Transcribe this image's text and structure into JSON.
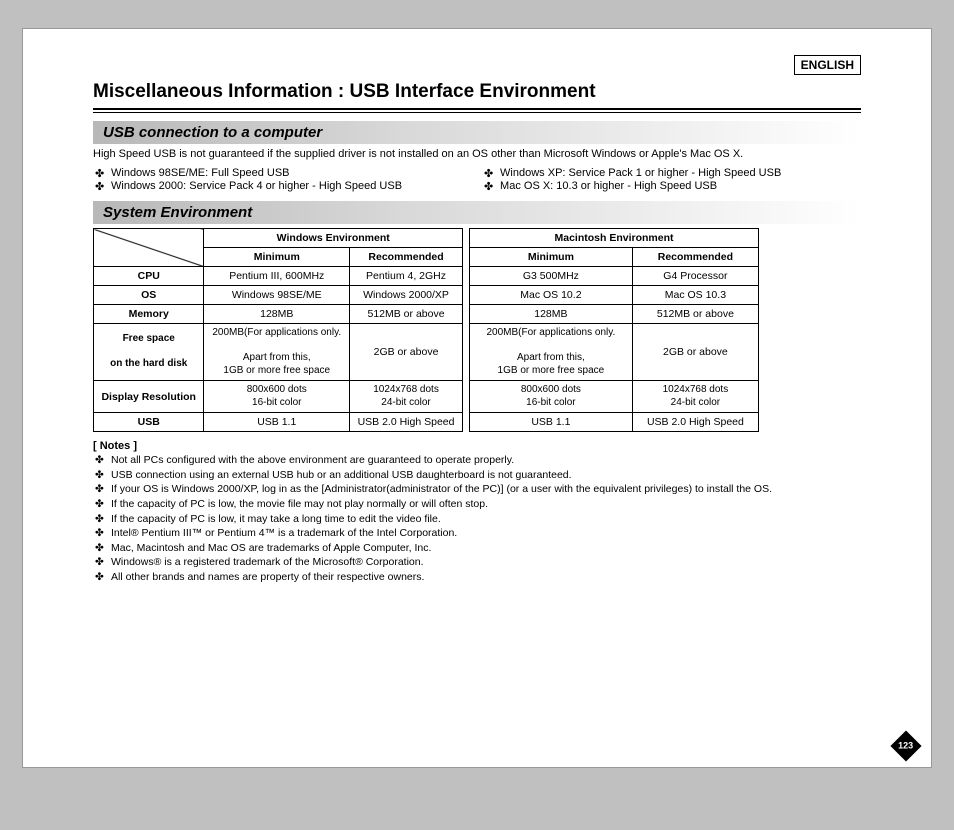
{
  "language_badge": "ENGLISH",
  "doc_title": "Miscellaneous Information : USB Interface Environment",
  "section1_title": "USB connection to a computer",
  "intro": "High Speed USB is not guaranteed if the supplied driver is not installed on an OS other than Microsoft Windows or Apple's Mac OS X.",
  "os_left": [
    "Windows 98SE/ME: Full Speed USB",
    "Windows 2000: Service Pack 4 or higher - High Speed USB"
  ],
  "os_right": [
    "Windows XP: Service Pack 1 or higher - High Speed USB",
    "Mac OS X: 10.3 or higher - High Speed USB"
  ],
  "section2_title": "System Environment",
  "win_env_label": "Windows Environment",
  "mac_env_label": "Macintosh Environment",
  "col_min": "Minimum",
  "col_rec": "Recommended",
  "rows": {
    "cpu": "CPU",
    "os": "OS",
    "memory": "Memory",
    "freespace1": "Free space",
    "freespace2": "on the hard disk",
    "display": "Display Resolution",
    "usb": "USB"
  },
  "win": {
    "cpu_min": "Pentium III, 600MHz",
    "cpu_rec": "Pentium 4, 2GHz",
    "os_min": "Windows 98SE/ME",
    "os_rec": "Windows 2000/XP",
    "mem_min": "128MB",
    "mem_rec": "512MB or above",
    "space_min_l1": "200MB(For applications only.",
    "space_min_l2": "Apart from this,",
    "space_min_l3": "1GB or more free space",
    "space_rec": "2GB or above",
    "disp_min_l1": "800x600 dots",
    "disp_min_l2": "16-bit color",
    "disp_rec_l1": "1024x768 dots",
    "disp_rec_l2": "24-bit color",
    "usb_min": "USB 1.1",
    "usb_rec": "USB 2.0 High Speed"
  },
  "mac": {
    "cpu_min": "G3 500MHz",
    "cpu_rec": "G4 Processor",
    "os_min": "Mac OS 10.2",
    "os_rec": "Mac OS 10.3",
    "mem_min": "128MB",
    "mem_rec": "512MB or above",
    "space_min_l1": "200MB(For applications only.",
    "space_min_l2": "Apart from this,",
    "space_min_l3": "1GB or more free space",
    "space_rec": "2GB or above",
    "disp_min_l1": "800x600 dots",
    "disp_min_l2": "16-bit color",
    "disp_rec_l1": "1024x768 dots",
    "disp_rec_l2": "24-bit color",
    "usb_min": "USB 1.1",
    "usb_rec": "USB 2.0 High Speed"
  },
  "notes_title": "[ Notes ]",
  "notes": [
    "Not all PCs configured with the above environment are guaranteed to operate properly.",
    "USB connection using an external USB hub or an additional USB daughterboard is not guaranteed.",
    "If your OS is Windows 2000/XP, log in as the [Administrator(administrator of the PC)] (or a user with the equivalent privileges) to install the OS.",
    "If the capacity of PC is low, the movie file may not play normally or will often stop.",
    "If the capacity of PC is low, it may take a long time to edit the video file.",
    "Intel® Pentium III™ or Pentium 4™ is a trademark of the Intel Corporation.",
    "Mac, Macintosh and Mac OS are trademarks of Apple Computer, Inc.",
    "Windows® is a registered trademark of the Microsoft® Corporation.",
    "All other brands and names are property of their respective owners."
  ],
  "page_number": "123"
}
